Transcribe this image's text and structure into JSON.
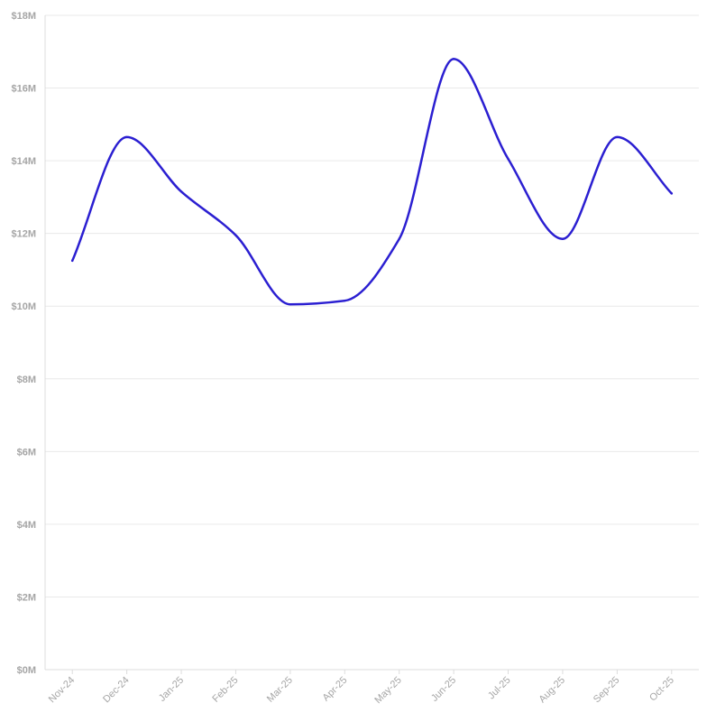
{
  "chart_data": {
    "type": "line",
    "categories": [
      "Nov-24",
      "Dec-24",
      "Jan-25",
      "Feb-25",
      "Mar-25",
      "Apr-25",
      "May-25",
      "Jun-25",
      "Jul-25",
      "Aug-25",
      "Sep-25",
      "Oct-25"
    ],
    "series": [
      {
        "values": [
          11.25,
          14.65,
          13.15,
          11.95,
          10.05,
          10.15,
          11.85,
          16.8,
          14.05,
          11.85,
          14.65,
          13.1
        ]
      }
    ],
    "y_ticks": [
      "$0M",
      "$2M",
      "$4M",
      "$6M",
      "$8M",
      "$10M",
      "$12M",
      "$14M",
      "$16M",
      "$18M"
    ],
    "ylim": [
      0,
      18
    ],
    "grid": true,
    "legend": "none",
    "colors": {
      "line": "#2b1fd1",
      "grid": "#e9e9e9",
      "axis": "#dcdcdc",
      "tick_text": "#a6a6a6"
    }
  }
}
